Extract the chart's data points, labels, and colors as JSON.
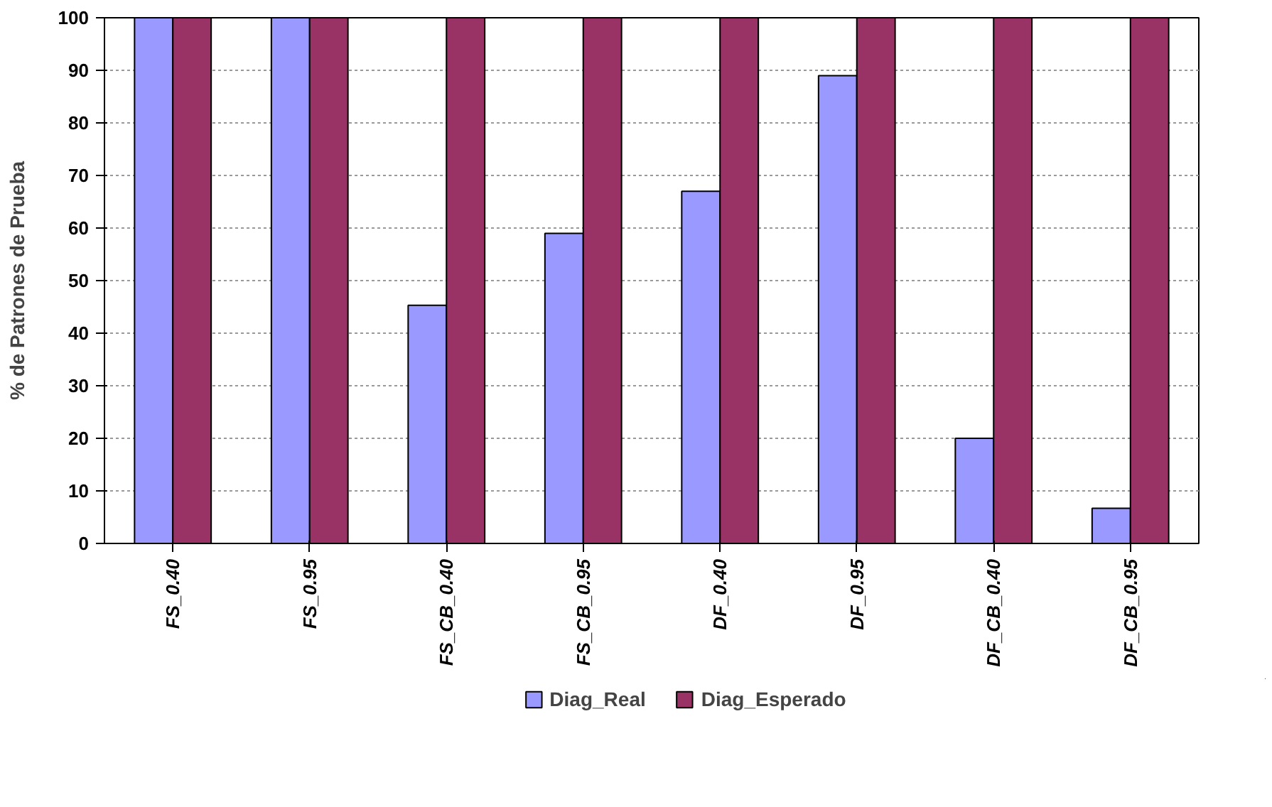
{
  "chart_data": {
    "type": "bar",
    "ylabel": "% de Patrones de Prueba",
    "categories": [
      "FS_0.40",
      "FS_0.95",
      "FS_CB_0.40",
      "FS_CB_0.95",
      "DF_0.40",
      "DF_0.95",
      "DF_CB_0.40",
      "DF_CB_0.95"
    ],
    "series": [
      {
        "name": "Diag_Real",
        "color": "#9999ff",
        "values": [
          100,
          100,
          45.3,
          59,
          67,
          89,
          20,
          6.7
        ]
      },
      {
        "name": "Diag_Esperado",
        "color": "#993366",
        "values": [
          100,
          100,
          100,
          100,
          100,
          100,
          100,
          100
        ]
      }
    ],
    "ylim": [
      0,
      100
    ],
    "yticks": [
      0,
      10,
      20,
      30,
      40,
      50,
      60,
      70,
      80,
      90,
      100
    ],
    "grid": "y",
    "legend": "bottom"
  }
}
